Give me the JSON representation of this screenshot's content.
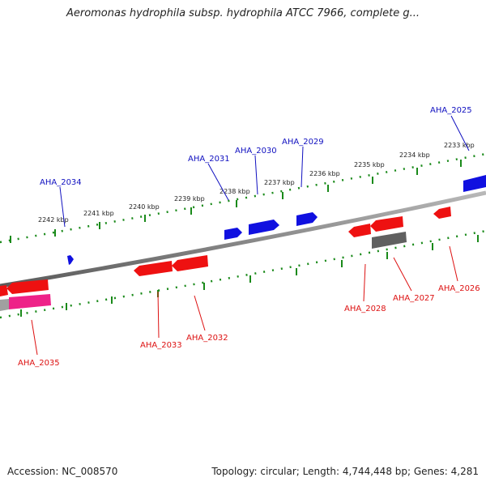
{
  "title": "Aeromonas hydrophila subsp. hydrophila ATCC 7966, complete g...",
  "footer": {
    "accession": "Accession: NC_008570",
    "summary": "Topology: circular; Length: 4,744,448 bp; Genes: 4,281"
  },
  "colors": {
    "forward_gene": "#1010e0",
    "reverse_gene": "#ee1111",
    "pseudo_gene": "#ee2288",
    "other_gene": "#606060",
    "backbone": "#8a8a8a",
    "ruler": "#1a8a1a",
    "forward_label": "#1010c0",
    "reverse_label": "#dd1111"
  },
  "ruler_labels": [
    "2233 kbp",
    "2234 kbp",
    "2235 kbp",
    "2236 kbp",
    "2237 kbp",
    "2238 kbp",
    "2239 kbp",
    "2240 kbp",
    "2241 kbp",
    "2242 kbp"
  ],
  "forward_gene_labels": [
    "AHA_2025",
    "AHA_2029",
    "AHA_2030",
    "AHA_2031",
    "AHA_2034"
  ],
  "reverse_gene_labels": [
    "AHA_2026",
    "AHA_2027",
    "AHA_2028",
    "AHA_2032",
    "AHA_2033",
    "AHA_2035"
  ]
}
